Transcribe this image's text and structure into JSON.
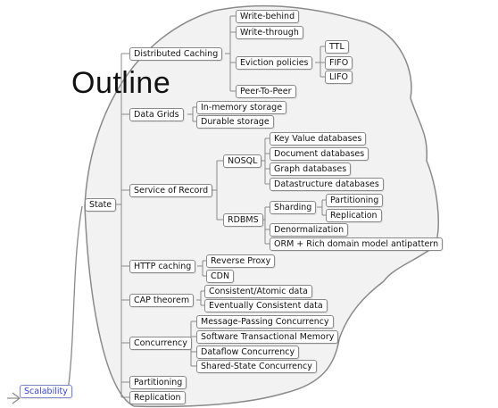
{
  "title": "Outline",
  "nodes": {
    "scalability": "Scalability",
    "state": "State",
    "distributed_caching": "Distributed Caching",
    "write_behind": "Write-behind",
    "write_through": "Write-through",
    "eviction_policies": "Eviction policies",
    "ttl": "TTL",
    "fifo": "FIFO",
    "lifo": "LIFO",
    "peer_to_peer": "Peer-To-Peer",
    "data_grids": "Data Grids",
    "in_memory_storage": "In-memory storage",
    "durable_storage": "Durable storage",
    "service_of_record": "Service of Record",
    "nosql": "NOSQL",
    "key_value_databases": "Key Value databases",
    "document_databases": "Document databases",
    "graph_databases": "Graph databases",
    "datastructure_databases": "Datastructure databases",
    "rdbms": "RDBMS",
    "sharding": "Sharding",
    "partitioning_sharding": "Partitioning",
    "replication_sharding": "Replication",
    "denormalization": "Denormalization",
    "orm_antipattern": "ORM + Rich domain model antipattern",
    "http_caching": "HTTP caching",
    "reverse_proxy": "Reverse Proxy",
    "cdn": "CDN",
    "cap_theorem": "CAP theorem",
    "consistent_atomic_data": "Consistent/Atomic data",
    "eventually_consistent_data": "Eventually Consistent data",
    "concurrency": "Concurrency",
    "message_passing": "Message-Passing Concurrency",
    "stm": "Software Transactional Memory",
    "dataflow": "Dataflow Concurrency",
    "shared_state": "Shared-State Concurrency",
    "partitioning": "Partitioning",
    "replication": "Replication"
  },
  "colors": {
    "line": "#8a8a8a",
    "root_text": "#3a44c8",
    "cloud_fill": "#f2f2f2"
  }
}
